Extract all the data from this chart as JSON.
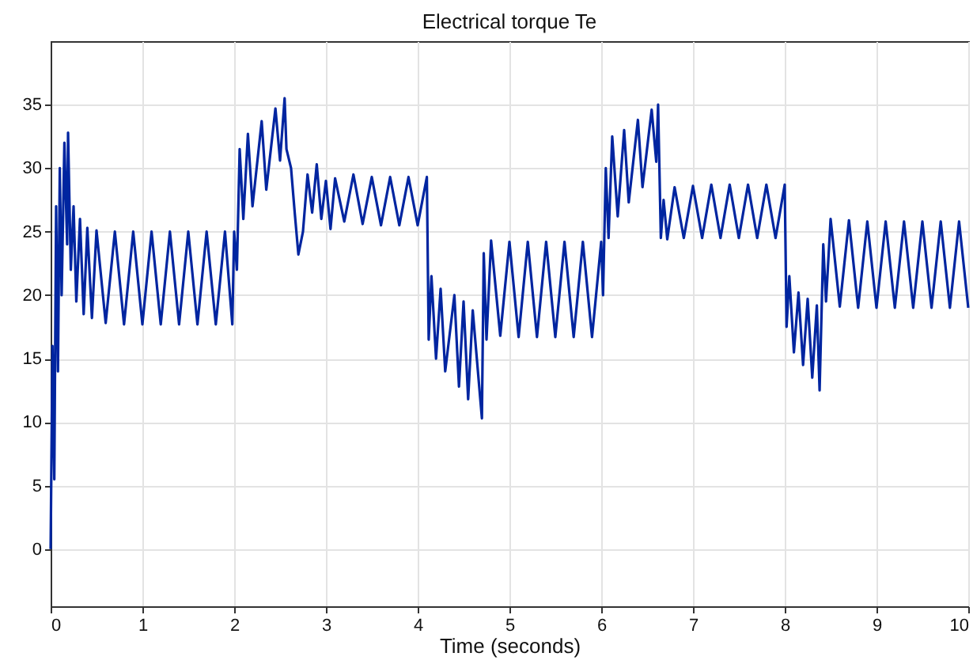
{
  "chart_data": {
    "type": "line",
    "title": "Electrical torque Te",
    "xlabel": "Time (seconds)",
    "xlim": [
      0,
      10
    ],
    "ylim": [
      -4.5,
      40
    ],
    "xticks": [
      0,
      1,
      2,
      3,
      4,
      5,
      6,
      7,
      8,
      9,
      10
    ],
    "yticks": [
      0,
      5,
      10,
      15,
      20,
      25,
      30,
      35
    ],
    "grid": true,
    "marker": "none",
    "line_style": "solid",
    "series": [
      {
        "color": "#0025a0",
        "x": [
          0,
          0.02,
          0.04,
          0.06,
          0.08,
          0.1,
          0.12,
          0.15,
          0.18,
          0.19,
          0.22,
          0.25,
          0.28,
          0.32,
          0.36,
          0.4,
          0.45,
          0.5,
          0.6,
          0.7,
          0.8,
          0.9,
          1.0,
          1.1,
          1.2,
          1.3,
          1.4,
          1.5,
          1.6,
          1.7,
          1.8,
          1.9,
          1.98,
          2.0,
          2.03,
          2.06,
          2.1,
          2.15,
          2.2,
          2.3,
          2.35,
          2.45,
          2.5,
          2.55,
          2.57,
          2.62,
          2.66,
          2.7,
          2.75,
          2.8,
          2.85,
          2.9,
          2.95,
          3.0,
          3.05,
          3.1,
          3.2,
          3.3,
          3.4,
          3.5,
          3.6,
          3.7,
          3.8,
          3.9,
          4.0,
          4.1,
          4.12,
          4.15,
          4.2,
          4.25,
          4.3,
          4.4,
          4.45,
          4.5,
          4.55,
          4.6,
          4.7,
          4.72,
          4.75,
          4.8,
          4.9,
          5.0,
          5.1,
          5.2,
          5.3,
          5.4,
          5.5,
          5.6,
          5.7,
          5.8,
          5.9,
          6.0,
          6.02,
          6.05,
          6.08,
          6.12,
          6.18,
          6.25,
          6.3,
          6.4,
          6.45,
          6.55,
          6.6,
          6.62,
          6.65,
          6.68,
          6.72,
          6.8,
          6.9,
          7.0,
          7.1,
          7.2,
          7.3,
          7.4,
          7.5,
          7.6,
          7.7,
          7.8,
          7.9,
          8.0,
          8.02,
          8.05,
          8.1,
          8.15,
          8.2,
          8.25,
          8.3,
          8.35,
          8.38,
          8.42,
          8.45,
          8.5,
          8.6,
          8.7,
          8.8,
          8.9,
          9.0,
          9.1,
          9.2,
          9.3,
          9.4,
          9.5,
          9.6,
          9.7,
          9.8,
          9.9,
          10
        ],
        "values": [
          0,
          16,
          5.5,
          27,
          14,
          30,
          20,
          32,
          24,
          32.8,
          22,
          27,
          19.5,
          26,
          18.5,
          25.3,
          18.2,
          25.1,
          17.8,
          25,
          17.7,
          25,
          17.7,
          25,
          17.7,
          25,
          17.7,
          25,
          17.7,
          25,
          17.7,
          25,
          17.7,
          25,
          22,
          31.5,
          26,
          32.7,
          27,
          33.7,
          28.3,
          34.7,
          30.6,
          35.5,
          31.5,
          30,
          26.5,
          23.2,
          25,
          29.5,
          26.5,
          30.3,
          26,
          29,
          25.2,
          29.2,
          25.8,
          29.5,
          25.6,
          29.3,
          25.5,
          29.3,
          25.5,
          29.3,
          25.5,
          29.3,
          16.5,
          21.5,
          15,
          20.5,
          14,
          20,
          12.8,
          19.5,
          11.8,
          18.8,
          10.3,
          23.3,
          16.5,
          24.3,
          16.8,
          24.2,
          16.7,
          24.2,
          16.7,
          24.2,
          16.7,
          24.2,
          16.7,
          24.2,
          16.7,
          24.2,
          20,
          30,
          24.5,
          32.5,
          26.2,
          33,
          27.3,
          33.8,
          28.5,
          34.6,
          30.5,
          35,
          24.5,
          27.5,
          24.4,
          28.5,
          24.5,
          28.6,
          24.5,
          28.7,
          24.5,
          28.7,
          24.5,
          28.7,
          24.5,
          28.7,
          24.5,
          28.7,
          17.5,
          21.5,
          15.5,
          20.2,
          14.5,
          19.7,
          13.5,
          19.2,
          12.5,
          24,
          19.5,
          26,
          19.1,
          25.9,
          19,
          25.8,
          19,
          25.8,
          19,
          25.8,
          19,
          25.8,
          19,
          25.8,
          19,
          25.8,
          19
        ]
      }
    ]
  }
}
